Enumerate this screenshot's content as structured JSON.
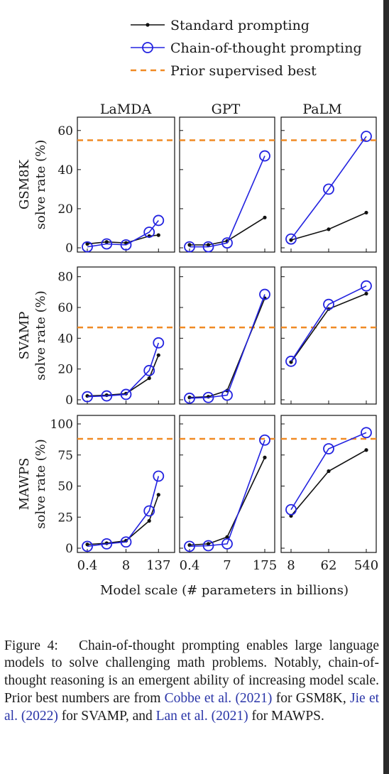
{
  "legend": {
    "standard": "Standard prompting",
    "cot": "Chain-of-thought prompting",
    "prior": "Prior supervised best"
  },
  "colors": {
    "standard": "#111111",
    "cot": "#2323e0",
    "prior": "#f08a24"
  },
  "xlabel": "Model scale (# parameters in billions)",
  "chart_data": [
    {
      "type": "line",
      "dataset": "GSM8K",
      "model": "LaMDA",
      "ylabel_lines": [
        "GSM8K",
        "solve rate (%)"
      ],
      "ylim": [
        0,
        65
      ],
      "yticks": [
        0,
        20,
        40,
        60
      ],
      "x_ticks": [
        "0.4",
        "8",
        "137"
      ],
      "prior_best": 55,
      "series": [
        {
          "key": "standard",
          "values": [
            2,
            3,
            2.5,
            6,
            6.5
          ]
        },
        {
          "key": "cot",
          "values": [
            0.5,
            2,
            1.5,
            8,
            14
          ]
        }
      ]
    },
    {
      "type": "line",
      "dataset": "GSM8K",
      "model": "GPT",
      "ylim": [
        0,
        65
      ],
      "yticks": [
        0,
        20,
        40,
        60
      ],
      "x_ticks": [
        "0.4",
        "7",
        "175"
      ],
      "prior_best": 55,
      "series": [
        {
          "key": "standard",
          "values": [
            1.5,
            1.5,
            3.5,
            15.5
          ]
        },
        {
          "key": "cot",
          "values": [
            0.5,
            0.5,
            2.5,
            47
          ]
        }
      ]
    },
    {
      "type": "line",
      "dataset": "GSM8K",
      "model": "PaLM",
      "ylim": [
        0,
        65
      ],
      "yticks": [
        0,
        20,
        40,
        60
      ],
      "x_ticks": [
        "8",
        "62",
        "540"
      ],
      "prior_best": 55,
      "series": [
        {
          "key": "standard",
          "values": [
            4,
            9.5,
            18
          ]
        },
        {
          "key": "cot",
          "values": [
            4.5,
            30,
            57
          ]
        }
      ]
    },
    {
      "type": "line",
      "dataset": "SVAMP",
      "model": "LaMDA",
      "ylabel_lines": [
        "SVAMP",
        "solve rate (%)"
      ],
      "ylim": [
        0,
        84
      ],
      "yticks": [
        0,
        20,
        40,
        60,
        80
      ],
      "x_ticks": [
        "0.4",
        "8",
        "137"
      ],
      "prior_best": 47,
      "series": [
        {
          "key": "standard",
          "values": [
            2.5,
            3,
            4,
            14,
            29
          ]
        },
        {
          "key": "cot",
          "values": [
            2,
            2.5,
            3.5,
            19,
            37
          ]
        }
      ]
    },
    {
      "type": "line",
      "dataset": "SVAMP",
      "model": "GPT",
      "ylim": [
        0,
        84
      ],
      "yticks": [
        0,
        20,
        40,
        60,
        80
      ],
      "x_ticks": [
        "0.4",
        "7",
        "175"
      ],
      "prior_best": 47,
      "series": [
        {
          "key": "standard",
          "values": [
            1.5,
            2,
            6,
            66
          ]
        },
        {
          "key": "cot",
          "values": [
            1,
            1.5,
            3,
            68.5
          ]
        }
      ]
    },
    {
      "type": "line",
      "dataset": "SVAMP",
      "model": "PaLM",
      "ylim": [
        0,
        84
      ],
      "yticks": [
        0,
        20,
        40,
        60,
        80
      ],
      "x_ticks": [
        "8",
        "62",
        "540"
      ],
      "prior_best": 47,
      "series": [
        {
          "key": "standard",
          "values": [
            24.5,
            59,
            69
          ]
        },
        {
          "key": "cot",
          "values": [
            25,
            62,
            74
          ]
        }
      ]
    },
    {
      "type": "line",
      "dataset": "MAWPS",
      "model": "LaMDA",
      "ylabel_lines": [
        "MAWPS",
        "solve rate (%)"
      ],
      "ylim": [
        0,
        104
      ],
      "yticks": [
        0,
        25,
        50,
        75,
        100
      ],
      "x_ticks": [
        "0.4",
        "8",
        "137"
      ],
      "prior_best": 88,
      "series": [
        {
          "key": "standard",
          "values": [
            3,
            4,
            6,
            22,
            43
          ]
        },
        {
          "key": "cot",
          "values": [
            1.5,
            3.5,
            5,
            30,
            58
          ]
        }
      ]
    },
    {
      "type": "line",
      "dataset": "MAWPS",
      "model": "GPT",
      "ylim": [
        0,
        104
      ],
      "yticks": [
        0,
        25,
        50,
        75,
        100
      ],
      "x_ticks": [
        "0.4",
        "7",
        "175"
      ],
      "prior_best": 88,
      "series": [
        {
          "key": "standard",
          "values": [
            2.5,
            3.5,
            9,
            73
          ]
        },
        {
          "key": "cot",
          "values": [
            1.5,
            2,
            3.5,
            87
          ]
        }
      ]
    },
    {
      "type": "line",
      "dataset": "MAWPS",
      "model": "PaLM",
      "ylim": [
        0,
        104
      ],
      "yticks": [
        0,
        25,
        50,
        75,
        100
      ],
      "x_ticks": [
        "8",
        "62",
        "540"
      ],
      "prior_best": 88,
      "series": [
        {
          "key": "standard",
          "values": [
            26,
            62,
            79
          ]
        },
        {
          "key": "cot",
          "values": [
            31,
            80,
            93
          ]
        }
      ]
    }
  ],
  "caption": {
    "label": "Figure 4:",
    "text1": "Chain-of-thought prompting enables large language models to solve challenging math problems. Notably, chain-of-thought reasoning is an emergent ability of increasing model scale. Prior best numbers are from",
    "cite1": "Cobbe et al. (2021)",
    "text2": "for GSM8K,",
    "cite2": "Jie et al. (2022)",
    "text3": "for SVAMP, and",
    "cite3": "Lan et al. (2021)",
    "text4": "for MAWPS."
  }
}
